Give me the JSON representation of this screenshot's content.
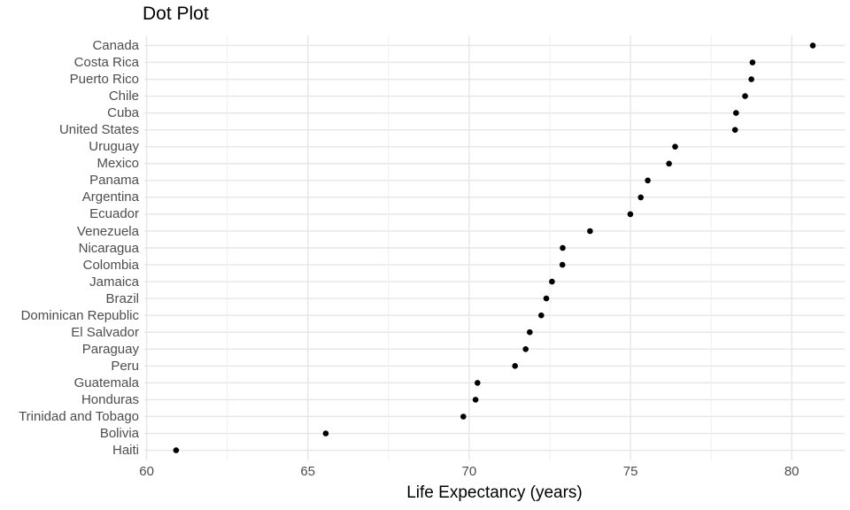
{
  "chart_data": {
    "type": "scatter",
    "subtype": "dot-plot",
    "orientation": "horizontal",
    "title": "Dot Plot",
    "xlabel": "Life Expectancy (years)",
    "ylabel": "",
    "categories": [
      "Canada",
      "Costa Rica",
      "Puerto Rico",
      "Chile",
      "Cuba",
      "United States",
      "Uruguay",
      "Mexico",
      "Panama",
      "Argentina",
      "Ecuador",
      "Venezuela",
      "Nicaragua",
      "Colombia",
      "Jamaica",
      "Brazil",
      "Dominican Republic",
      "El Salvador",
      "Paraguay",
      "Peru",
      "Guatemala",
      "Honduras",
      "Trinidad and Tobago",
      "Bolivia",
      "Haiti"
    ],
    "values": [
      80.653,
      78.782,
      78.746,
      78.553,
      78.273,
      78.242,
      76.384,
      76.195,
      75.537,
      75.32,
      74.994,
      73.747,
      72.899,
      72.889,
      72.567,
      72.39,
      72.235,
      71.878,
      71.752,
      71.421,
      70.259,
      70.198,
      69.819,
      65.554,
      60.916
    ],
    "x_ticks": [
      60,
      65,
      70,
      75,
      80
    ],
    "x_minor_ticks": [
      62.5,
      67.5,
      72.5,
      77.5
    ],
    "xlim": [
      59.93,
      81.64
    ],
    "grid": true,
    "legend": false,
    "colors": {
      "point": "#000000",
      "grid_major": "#e6e6e6",
      "grid_minor": "#efefef",
      "axis_text": "#4d4d4d",
      "title_text": "#000000",
      "background": "#ffffff"
    }
  }
}
